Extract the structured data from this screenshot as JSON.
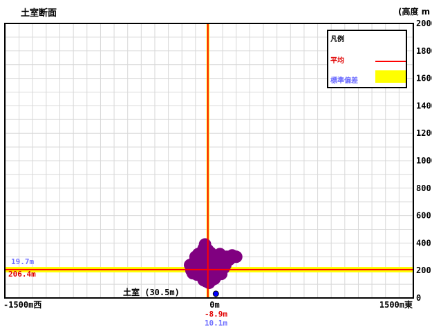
{
  "title": "土室断面",
  "y_unit": "(高度 m",
  "legend": {
    "title": "凡例",
    "mean_label": "平均",
    "std_label": "標準偏差",
    "mean_color": "#ff0000",
    "std_color": "#ffff00"
  },
  "site_label": "土室 (30.5m)",
  "chart_data": {
    "type": "scatter",
    "title": "土室断面",
    "xlim": [
      -1500,
      1500
    ],
    "ylim": [
      0,
      2000
    ],
    "x_tick_labels": [
      "-1500m西",
      "0m",
      "1500m東"
    ],
    "y_ticks": [
      0,
      200,
      400,
      600,
      800,
      1000,
      1200,
      1400,
      1600,
      1800,
      2000
    ],
    "y_tick_labels": [
      "0",
      "200",
      "400",
      "600",
      "800",
      "1000",
      "1200",
      "1400",
      "1600",
      "1800",
      "2000"
    ],
    "grid": true,
    "legend_position": "top-right",
    "series": [
      {
        "name": "平均",
        "color": "#ff0000"
      },
      {
        "name": "標準偏差",
        "color": "#ffff00"
      }
    ],
    "mean_height_m": 206.4,
    "height_std_m": 19.7,
    "mean_offset_m": -8.9,
    "offset_std_m": 10.1,
    "mean_height_label": "206.4m",
    "height_std_label": "19.7m",
    "mean_offset_label": "-8.9m",
    "offset_std_label": "10.1m",
    "site": {
      "name": "土室 (30.5m)",
      "x": 50,
      "height": 30.5,
      "color": "#0000ff"
    },
    "cluster_color": "#800080",
    "points": [
      [
        -80,
        190
      ],
      [
        -60,
        210
      ],
      [
        -40,
        200
      ],
      [
        -20,
        220
      ],
      [
        0,
        215
      ],
      [
        20,
        205
      ],
      [
        40,
        195
      ],
      [
        60,
        210
      ],
      [
        80,
        200
      ],
      [
        -100,
        230
      ],
      [
        -70,
        250
      ],
      [
        -50,
        240
      ],
      [
        -30,
        260
      ],
      [
        -10,
        250
      ],
      [
        10,
        240
      ],
      [
        30,
        255
      ],
      [
        50,
        245
      ],
      [
        70,
        230
      ],
      [
        -90,
        170
      ],
      [
        -60,
        160
      ],
      [
        -30,
        150
      ],
      [
        0,
        145
      ],
      [
        30,
        155
      ],
      [
        60,
        165
      ],
      [
        90,
        175
      ],
      [
        -120,
        210
      ],
      [
        -110,
        260
      ],
      [
        -40,
        290
      ],
      [
        -20,
        320
      ],
      [
        0,
        300
      ],
      [
        20,
        280
      ],
      [
        40,
        290
      ],
      [
        60,
        270
      ],
      [
        -60,
        330
      ],
      [
        -40,
        360
      ],
      [
        -30,
        390
      ],
      [
        -10,
        350
      ],
      [
        10,
        330
      ],
      [
        30,
        310
      ],
      [
        -140,
        240
      ],
      [
        -130,
        200
      ],
      [
        -120,
        180
      ],
      [
        110,
        220
      ],
      [
        120,
        240
      ],
      [
        150,
        280
      ],
      [
        200,
        300
      ],
      [
        -20,
        120
      ],
      [
        0,
        110
      ],
      [
        20,
        130
      ],
      [
        40,
        140
      ],
      [
        -40,
        130
      ],
      [
        100,
        260
      ],
      [
        130,
        300
      ],
      [
        170,
        310
      ],
      [
        -100,
        300
      ],
      [
        -80,
        320
      ],
      [
        80,
        320
      ],
      [
        100,
        290
      ],
      [
        -50,
        180
      ],
      [
        50,
        180
      ],
      [
        0,
        180
      ],
      [
        10,
        270
      ]
    ]
  }
}
